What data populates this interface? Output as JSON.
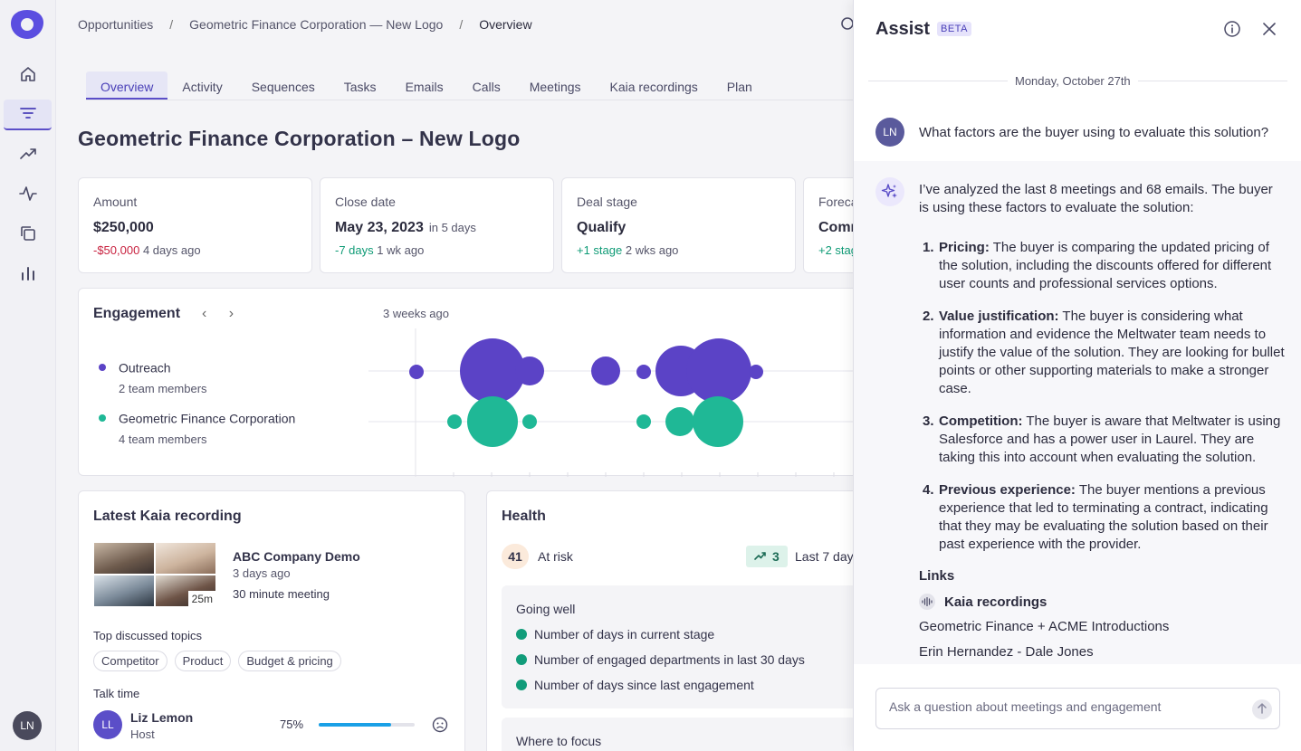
{
  "nav": {
    "items": [
      "home-icon",
      "filter-icon",
      "trending-icon",
      "activity-icon",
      "copy-icon",
      "bar-chart-icon"
    ],
    "user_initials": "LN"
  },
  "breadcrumb": {
    "items": [
      "Opportunities",
      "Geometric Finance Corporation — New Logo",
      "Overview"
    ]
  },
  "tabs": [
    "Overview",
    "Activity",
    "Sequences",
    "Tasks",
    "Emails",
    "Calls",
    "Meetings",
    "Kaia recordings",
    "Plan"
  ],
  "page_title": "Geometric Finance Corporation – New Logo",
  "kpis": [
    {
      "label": "Amount",
      "value": "$250,000",
      "sub": "",
      "change": "-$50,000",
      "change_type": "neg",
      "ago": "4 days ago"
    },
    {
      "label": "Close date",
      "value": "May 23, 2023",
      "sub": "in 5 days",
      "change": "-7 days",
      "change_type": "pos",
      "ago": "1 wk ago"
    },
    {
      "label": "Deal stage",
      "value": "Qualify",
      "sub": "",
      "change": "+1 stage",
      "change_type": "pos",
      "ago": "2 wks ago"
    },
    {
      "label": "Foreca",
      "value": "Comm",
      "sub": "",
      "change": "+2 stag",
      "change_type": "pos",
      "ago": ""
    }
  ],
  "engagement": {
    "title": "Engagement",
    "ago": "3 weeks ago",
    "rows": [
      {
        "name": "Outreach",
        "members": "2 team members",
        "color": "#5b43c6"
      },
      {
        "name": "Geometric Finance Corporation",
        "members": "4 team members",
        "color": "#1fb896"
      }
    ]
  },
  "kaia": {
    "title": "Latest Kaia recording",
    "duration": "25m",
    "recording_title": "ABC Company Demo",
    "recording_ago": "3 days ago",
    "recording_length": "30 minute meeting",
    "topics_label": "Top discussed topics",
    "topics": [
      "Competitor",
      "Product",
      "Budget & pricing"
    ],
    "talk_label": "Talk time",
    "speaker": {
      "initials": "LL",
      "name": "Liz Lemon",
      "role": "Host",
      "pct": "75%",
      "fill": 0.75
    }
  },
  "health": {
    "title": "Health",
    "score": "41",
    "status": "At risk",
    "trend": "3",
    "trend_period": "Last 7 days",
    "going_well_title": "Going well",
    "going_well": [
      "Number of days in current stage",
      "Number of engaged departments in last 30 days",
      "Number of days since last engagement"
    ],
    "focus_title": "Where to focus"
  },
  "assist": {
    "title": "Assist",
    "badge": "BETA",
    "date": "Monday, October 27th",
    "user_initials": "LN",
    "question": "What factors are the buyer using to evaluate this solution?",
    "answer_intro": "I’ve analyzed the last 8 meetings and 68 emails. The buyer is using these factors to evaluate the solution:",
    "factors": [
      {
        "num": "1.",
        "title": "Pricing:",
        "text": " The buyer is comparing the updated pricing of the solution, including the discounts offered for different user counts and professional services options."
      },
      {
        "num": "2.",
        "title": "Value justification:",
        "text": " The buyer is considering what information and evidence the Meltwater team needs to justify the value of the solution. They are looking for bullet points or other supporting materials to make a stronger case."
      },
      {
        "num": "3.",
        "title": "Competition:",
        "text": " The buyer is aware that Meltwater is using Salesforce and has a power user in Laurel. They are taking this into account when evaluating the solution."
      },
      {
        "num": "4.",
        "title": "Previous experience:",
        "text": " The buyer mentions a previous experience that led to terminating a contract, indicating that they may be evaluating the solution based on their past experience with the provider."
      }
    ],
    "links_label": "Links",
    "kaia_link": "Kaia recordings",
    "links": [
      "Geometric Finance + ACME Introductions",
      "Erin Hernandez - Dale Jones"
    ],
    "input_placeholder": "Ask a question about meetings and engagement"
  }
}
